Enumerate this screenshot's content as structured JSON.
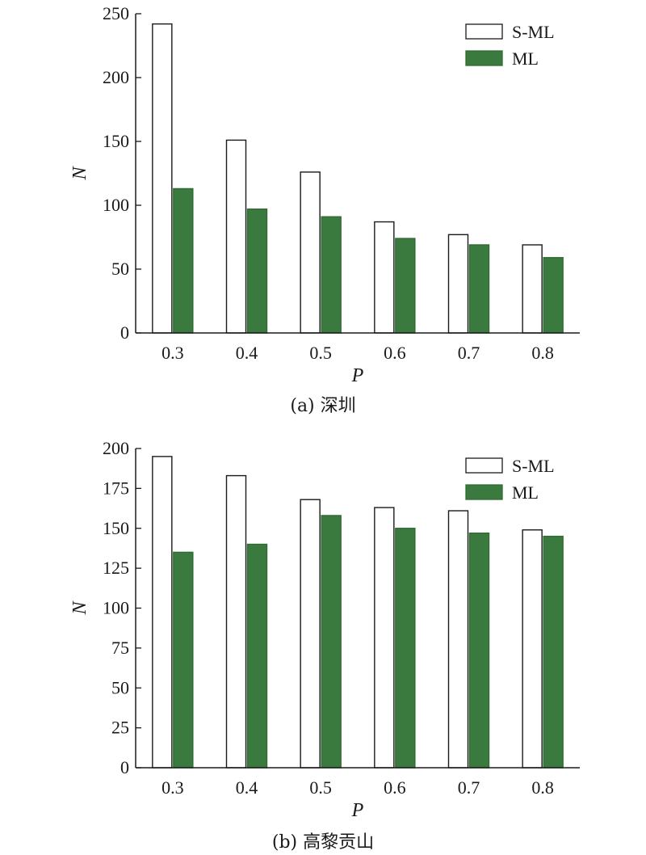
{
  "chart_data": [
    {
      "type": "bar",
      "caption": "(a) 深圳",
      "xlabel": "P",
      "ylabel": "N",
      "categories": [
        "0.3",
        "0.4",
        "0.5",
        "0.6",
        "0.7",
        "0.8"
      ],
      "ylim": [
        0,
        250
      ],
      "yticks": [
        0,
        50,
        100,
        150,
        200,
        250
      ],
      "legend_position": "top-right",
      "series": [
        {
          "name": "S-ML",
          "values": [
            242,
            151,
            126,
            87,
            77,
            69
          ],
          "color": "#ffffff"
        },
        {
          "name": "ML",
          "values": [
            113,
            97,
            91,
            74,
            69,
            59
          ],
          "color": "#3a7a3e"
        }
      ]
    },
    {
      "type": "bar",
      "caption": "(b) 高黎贡山",
      "xlabel": "P",
      "ylabel": "N",
      "categories": [
        "0.3",
        "0.4",
        "0.5",
        "0.6",
        "0.7",
        "0.8"
      ],
      "ylim": [
        0,
        200
      ],
      "yticks": [
        0,
        25,
        50,
        75,
        100,
        125,
        150,
        175,
        200
      ],
      "legend_position": "top-right",
      "series": [
        {
          "name": "S-ML",
          "values": [
            195,
            183,
            168,
            163,
            161,
            149
          ],
          "color": "#ffffff"
        },
        {
          "name": "ML",
          "values": [
            135,
            140,
            158,
            150,
            147,
            145
          ],
          "color": "#3a7a3e"
        }
      ]
    }
  ]
}
